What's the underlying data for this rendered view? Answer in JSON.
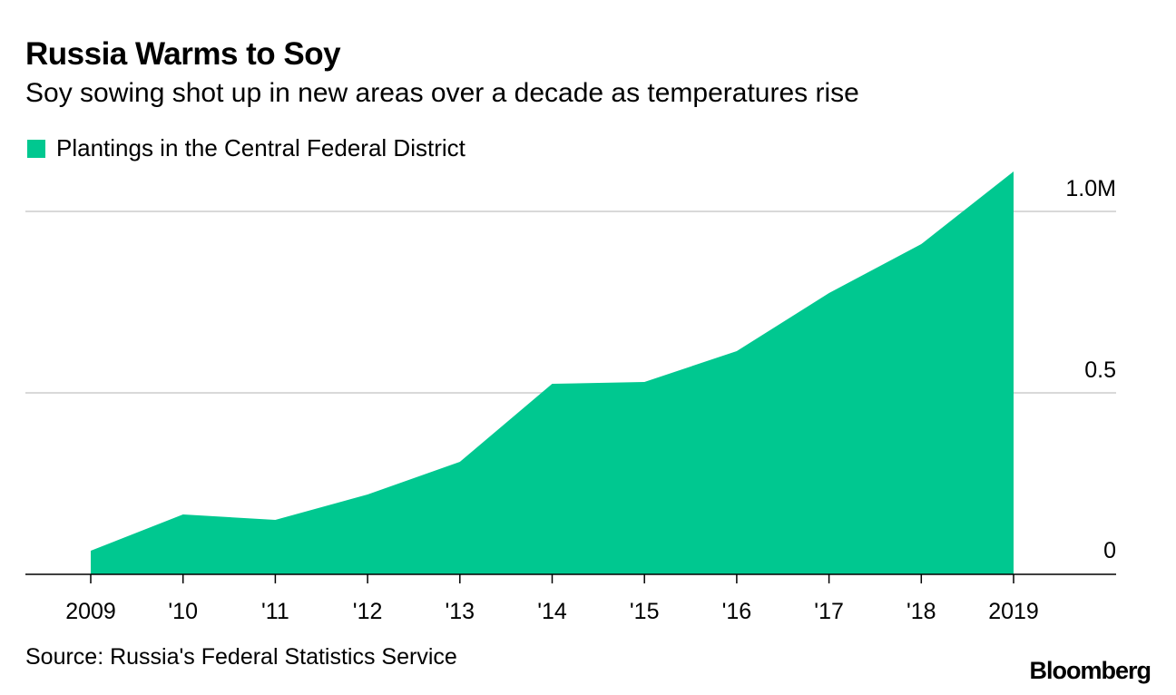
{
  "title": "Russia Warms to Soy",
  "subtitle": "Soy sowing shot up in new areas over a decade as temperatures rise",
  "source": "Source: Russia's Federal Statistics Service",
  "brand": "Bloomberg",
  "colors": {
    "area": "#00c890",
    "grid": "#d9d9d9",
    "axis": "#000000"
  },
  "chart_data": {
    "type": "area",
    "title": "Russia Warms to Soy",
    "x": [
      "2009",
      "'10",
      "'11",
      "'12",
      "'13",
      "'14",
      "'15",
      "'16",
      "'17",
      "'18",
      "2019"
    ],
    "series": [
      {
        "name": "Plantings in the Central Federal District",
        "values": [
          0.065,
          0.165,
          0.15,
          0.22,
          0.31,
          0.525,
          0.53,
          0.615,
          0.775,
          0.91,
          1.11
        ]
      }
    ],
    "yticks": [
      {
        "value": 0,
        "label": "0"
      },
      {
        "value": 0.5,
        "label": "0.5"
      },
      {
        "value": 1.0,
        "label": "1.0M"
      }
    ],
    "ylim": [
      0,
      1.1
    ],
    "xlabel": "",
    "ylabel": "",
    "legend": "top-left",
    "grid": true
  }
}
